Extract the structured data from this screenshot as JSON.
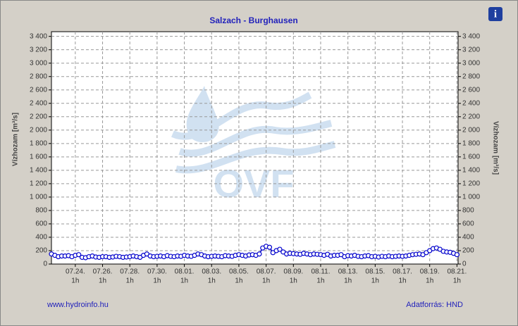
{
  "chart_data": {
    "type": "line",
    "title": "Salzach - Burghausen",
    "ylabel": "Vízhozam [m³/s]",
    "watermark": "OVF",
    "footer_left": "www.hydroinfo.hu",
    "footer_right": "Adatforrás: HND",
    "info_icon": "i",
    "grid": true,
    "ylim": [
      0,
      3470
    ],
    "yticks": [
      0,
      200,
      400,
      600,
      800,
      {
        "value": 1000,
        "label": "1 000"
      },
      {
        "value": 1200,
        "label": "1 200"
      },
      {
        "value": 1400,
        "label": "1 400"
      },
      {
        "value": 1600,
        "label": "1 600"
      },
      {
        "value": 1800,
        "label": "1 800"
      },
      {
        "value": 2000,
        "label": "2 000"
      },
      {
        "value": 2200,
        "label": "2 200"
      },
      {
        "value": 2400,
        "label": "2 400"
      },
      {
        "value": 2600,
        "label": "2 600"
      },
      {
        "value": 2800,
        "label": "2 800"
      },
      {
        "value": 3000,
        "label": "3 000"
      },
      {
        "value": 3200,
        "label": "3 200"
      },
      {
        "value": 3400,
        "label": "3 400"
      }
    ],
    "xlim": [
      "07.22. 7h",
      "08.21. 3h"
    ],
    "xticks": [
      {
        "value": "07.24. 1h",
        "label": [
          "07.24.",
          "1h"
        ]
      },
      {
        "value": "07.26. 1h",
        "label": [
          "07.26.",
          "1h"
        ]
      },
      {
        "value": "07.28. 1h",
        "label": [
          "07.28.",
          "1h"
        ]
      },
      {
        "value": "07.30. 1h",
        "label": [
          "07.30.",
          "1h"
        ]
      },
      {
        "value": "08.01. 1h",
        "label": [
          "08.01.",
          "1h"
        ]
      },
      {
        "value": "08.03. 1h",
        "label": [
          "08.03.",
          "1h"
        ]
      },
      {
        "value": "08.05. 1h",
        "label": [
          "08.05.",
          "1h"
        ]
      },
      {
        "value": "08.07. 1h",
        "label": [
          "08.07.",
          "1h"
        ]
      },
      {
        "value": "08.09. 1h",
        "label": [
          "08.09.",
          "1h"
        ]
      },
      {
        "value": "08.11. 1h",
        "label": [
          "08.11.",
          "1h"
        ]
      },
      {
        "value": "08.13. 1h",
        "label": [
          "08.13.",
          "1h"
        ]
      },
      {
        "value": "08.15. 1h",
        "label": [
          "08.15.",
          "1h"
        ]
      },
      {
        "value": "08.17. 1h",
        "label": [
          "08.17.",
          "1h"
        ]
      },
      {
        "value": "08.19. 1h",
        "label": [
          "08.19.",
          "1h"
        ]
      },
      {
        "value": "08.21. 1h",
        "label": [
          "08.21.",
          "1h"
        ]
      }
    ],
    "x": [
      "07.22. 7h",
      "07.22. 13h",
      "07.22. 19h",
      "07.23. 1h",
      "07.23. 7h",
      "07.23. 13h",
      "07.23. 19h",
      "07.24. 1h",
      "07.24. 7h",
      "07.24. 13h",
      "07.24. 19h",
      "07.25. 1h",
      "07.25. 7h",
      "07.25. 13h",
      "07.25. 19h",
      "07.26. 1h",
      "07.26. 7h",
      "07.26. 13h",
      "07.26. 19h",
      "07.27. 1h",
      "07.27. 7h",
      "07.27. 13h",
      "07.27. 19h",
      "07.28. 1h",
      "07.28. 7h",
      "07.28. 13h",
      "07.28. 19h",
      "07.29. 1h",
      "07.29. 7h",
      "07.29. 13h",
      "07.29. 19h",
      "07.30. 1h",
      "07.30. 7h",
      "07.30. 13h",
      "07.30. 19h",
      "07.31. 1h",
      "07.31. 7h",
      "07.31. 13h",
      "07.31. 19h",
      "08.01. 1h",
      "08.01. 7h",
      "08.01. 13h",
      "08.01. 19h",
      "08.02. 1h",
      "08.02. 7h",
      "08.02. 13h",
      "08.02. 19h",
      "08.03. 1h",
      "08.03. 7h",
      "08.03. 13h",
      "08.03. 19h",
      "08.04. 1h",
      "08.04. 7h",
      "08.04. 13h",
      "08.04. 19h",
      "08.05. 1h",
      "08.05. 7h",
      "08.05. 13h",
      "08.05. 19h",
      "08.06. 1h",
      "08.06. 7h",
      "08.06. 13h",
      "08.06. 19h",
      "08.07. 1h",
      "08.07. 7h",
      "08.07. 13h",
      "08.07. 19h",
      "08.08. 1h",
      "08.08. 7h",
      "08.08. 13h",
      "08.08. 19h",
      "08.09. 1h",
      "08.09. 7h",
      "08.09. 13h",
      "08.09. 19h",
      "08.10. 1h",
      "08.10. 7h",
      "08.10. 13h",
      "08.10. 19h",
      "08.11. 1h",
      "08.11. 7h",
      "08.11. 13h",
      "08.11. 19h",
      "08.12. 1h",
      "08.12. 7h",
      "08.12. 13h",
      "08.12. 19h",
      "08.13. 1h",
      "08.13. 7h",
      "08.13. 13h",
      "08.13. 19h",
      "08.14. 1h",
      "08.14. 7h",
      "08.14. 13h",
      "08.14. 19h",
      "08.15. 1h",
      "08.15. 7h",
      "08.15. 13h",
      "08.15. 19h",
      "08.16. 1h",
      "08.16. 7h",
      "08.16. 13h",
      "08.16. 19h",
      "08.17. 1h",
      "08.17. 7h",
      "08.17. 13h",
      "08.17. 19h",
      "08.18. 1h",
      "08.18. 7h",
      "08.18. 13h",
      "08.18. 19h",
      "08.19. 1h",
      "08.19. 7h",
      "08.19. 13h",
      "08.19. 19h",
      "08.20. 1h",
      "08.20. 7h",
      "08.20. 13h",
      "08.20. 19h",
      "08.21. 1h"
    ],
    "series": [
      {
        "color": "#0000cc",
        "values": [
          150,
          130,
          110,
          120,
          120,
          125,
          110,
          130,
          140,
          100,
          95,
          110,
          120,
          105,
          100,
          110,
          110,
          100,
          105,
          115,
          110,
          100,
          105,
          110,
          120,
          110,
          100,
          130,
          150,
          120,
          110,
          115,
          120,
          110,
          125,
          115,
          110,
          120,
          115,
          130,
          120,
          115,
          130,
          150,
          140,
          120,
          110,
          115,
          120,
          115,
          110,
          125,
          120,
          115,
          130,
          140,
          130,
          120,
          135,
          140,
          130,
          150,
          240,
          265,
          250,
          170,
          200,
          220,
          180,
          150,
          160,
          155,
          150,
          145,
          160,
          150,
          140,
          150,
          145,
          140,
          130,
          145,
          120,
          130,
          130,
          140,
          110,
          125,
          120,
          130,
          115,
          110,
          120,
          125,
          110,
          115,
          105,
          115,
          110,
          120,
          110,
          115,
          120,
          115,
          120,
          130,
          140,
          145,
          150,
          140,
          170,
          200,
          230,
          240,
          220,
          190,
          180,
          175,
          160,
          140
        ]
      }
    ]
  }
}
